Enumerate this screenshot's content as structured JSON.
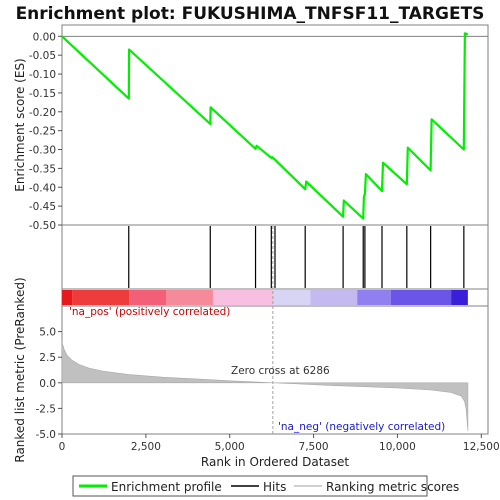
{
  "chart_data": {
    "type": "line",
    "title": "Enrichment plot: FUKUSHIMA_TNFSF11_TARGETS",
    "es_panel": {
      "ylabel": "Enrichment score (ES)",
      "ylim": [
        -0.5,
        0.03
      ],
      "yticks": [
        0.0,
        -0.05,
        -0.1,
        -0.15,
        -0.2,
        -0.25,
        -0.3,
        -0.35,
        -0.4,
        -0.45,
        -0.5
      ],
      "ytick_labels": [
        "0.00",
        "-0.05",
        "-0.10",
        "-0.15",
        "-0.20",
        "-0.25",
        "-0.30",
        "-0.35",
        "-0.40",
        "-0.45",
        "-0.50"
      ],
      "line_color": "#00ee00",
      "points": [
        [
          0,
          0.0
        ],
        [
          1990,
          -0.165
        ],
        [
          2000,
          -0.035
        ],
        [
          4420,
          -0.232
        ],
        [
          4430,
          -0.188
        ],
        [
          5770,
          -0.298
        ],
        [
          5800,
          -0.29
        ],
        [
          6240,
          -0.322
        ],
        [
          6260,
          -0.32
        ],
        [
          6350,
          -0.327
        ],
        [
          7250,
          -0.405
        ],
        [
          7280,
          -0.385
        ],
        [
          8380,
          -0.478
        ],
        [
          8400,
          -0.435
        ],
        [
          8980,
          -0.483
        ],
        [
          9000,
          -0.425
        ],
        [
          9030,
          -0.418
        ],
        [
          9060,
          -0.365
        ],
        [
          9540,
          -0.41
        ],
        [
          9570,
          -0.335
        ],
        [
          10280,
          -0.392
        ],
        [
          10310,
          -0.295
        ],
        [
          10990,
          -0.355
        ],
        [
          11020,
          -0.22
        ],
        [
          11980,
          -0.3
        ],
        [
          12010,
          0.008
        ],
        [
          12100,
          0.005
        ]
      ]
    },
    "hits": [
      1990,
      4420,
      5770,
      6240,
      6350,
      7250,
      8380,
      8980,
      9030,
      9540,
      10280,
      10990,
      11980
    ],
    "metric_panel": {
      "ylabel": "Ranked list metric (PreRanked)",
      "ylim": [
        -5,
        7.5
      ],
      "yticks": [
        5,
        2.5,
        0,
        -2.5,
        -5
      ],
      "ytick_labels": [
        "5.0",
        "2.5",
        "0.0",
        "-2.5",
        "-5.0"
      ],
      "fill_color": "#c0c0c0",
      "points": [
        [
          0,
          4.0
        ],
        [
          60,
          3.3
        ],
        [
          150,
          2.7
        ],
        [
          300,
          2.2
        ],
        [
          500,
          1.8
        ],
        [
          800,
          1.45
        ],
        [
          1200,
          1.15
        ],
        [
          2000,
          0.8
        ],
        [
          3000,
          0.55
        ],
        [
          4000,
          0.38
        ],
        [
          5000,
          0.2
        ],
        [
          6286,
          0.0
        ],
        [
          7000,
          -0.1
        ],
        [
          8000,
          -0.25
        ],
        [
          9000,
          -0.38
        ],
        [
          10000,
          -0.5
        ],
        [
          11000,
          -0.7
        ],
        [
          11600,
          -0.95
        ],
        [
          11900,
          -1.3
        ],
        [
          12000,
          -1.8
        ],
        [
          12050,
          -2.6
        ],
        [
          12100,
          -4.7
        ]
      ],
      "zero_cross_label": "Zero cross at 6286",
      "zero_cross": 6286,
      "pos_label": "'na_pos' (positively correlated)",
      "neg_label": "'na_neg' (negatively correlated)"
    },
    "xlabel": "Rank in Ordered Dataset",
    "xlim": [
      0,
      12700
    ],
    "xticks": [
      0,
      2500,
      5000,
      7500,
      10000,
      12500
    ],
    "xtick_labels": [
      "0",
      "2,500",
      "5,000",
      "7,500",
      "10,000",
      "12,500"
    ],
    "total_genes": 12100,
    "colorbar": [
      {
        "from": 0,
        "to": 300,
        "color": "#e41a1c"
      },
      {
        "from": 300,
        "to": 2000,
        "color": "#ee3b3b"
      },
      {
        "from": 2000,
        "to": 3100,
        "color": "#f26078"
      },
      {
        "from": 3100,
        "to": 4500,
        "color": "#f48a9a"
      },
      {
        "from": 4500,
        "to": 6286,
        "color": "#f9bfe0"
      },
      {
        "from": 6286,
        "to": 7400,
        "color": "#d8d4f4"
      },
      {
        "from": 7400,
        "to": 8800,
        "color": "#c4baf0"
      },
      {
        "from": 8800,
        "to": 9800,
        "color": "#8f7ff0"
      },
      {
        "from": 9800,
        "to": 11600,
        "color": "#6a55e8"
      },
      {
        "from": 11600,
        "to": 12100,
        "color": "#3a1fd9"
      }
    ],
    "legend": {
      "items": [
        {
          "label": "Enrichment profile",
          "color": "#00ee00"
        },
        {
          "label": "Hits",
          "color": "#000000"
        },
        {
          "label": "Ranking metric scores",
          "color": "#c0c0c0"
        }
      ]
    }
  }
}
